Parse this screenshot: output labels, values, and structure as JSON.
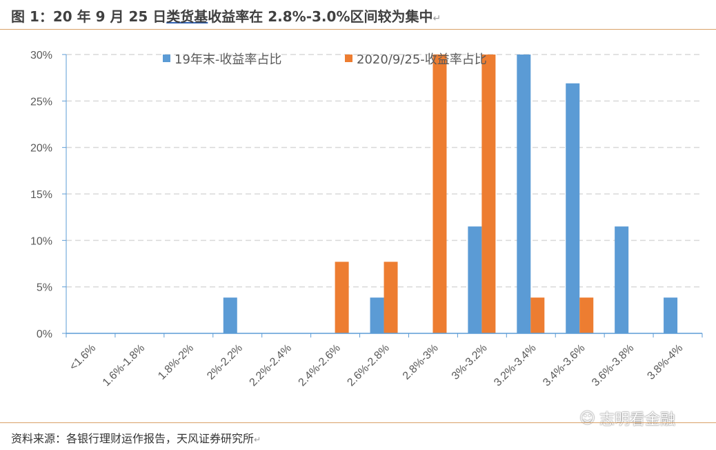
{
  "title": {
    "prefix": "图 1：20 年 9 月 25 日",
    "underlined": "类货基",
    "suffix": "收益率在 2.8%-3.0%区间较为集中"
  },
  "source": "资料来源：各银行理财运作报告，天风证券研究所",
  "watermark": "志明看金融",
  "colors": {
    "blue": "#5b9bd5",
    "orange": "#ed7d31",
    "rule": "#d9a066"
  },
  "chart_data": {
    "type": "bar",
    "title": "",
    "xlabel": "",
    "ylabel": "",
    "ylim": [
      0,
      30
    ],
    "yticks": [
      "0%",
      "5%",
      "10%",
      "15%",
      "20%",
      "25%",
      "30%"
    ],
    "grid": true,
    "legend": "top",
    "categories": [
      "<1.6%",
      "1.6%-1.8%",
      "1.8%-2%",
      "2%-2.2%",
      "2.2%-2.4%",
      "2.4%-2.6%",
      "2.6%-2.8%",
      "2.8%-3%",
      "3%-3.2%",
      "3.2%-3.4%",
      "3.4%-3.6%",
      "3.6%-3.8%",
      "3.8%-4%"
    ],
    "series": [
      {
        "name": "19年末-收益率占比",
        "color": "#5b9bd5",
        "values": [
          0,
          0,
          0,
          3.85,
          0,
          0,
          3.85,
          0,
          11.5,
          30,
          26.9,
          11.5,
          3.85
        ]
      },
      {
        "name": "2020/9/25-收益率占比",
        "color": "#ed7d31",
        "values": [
          0,
          0,
          0,
          0,
          0,
          7.7,
          7.7,
          30,
          30,
          3.85,
          3.85,
          0,
          0
        ]
      }
    ]
  }
}
